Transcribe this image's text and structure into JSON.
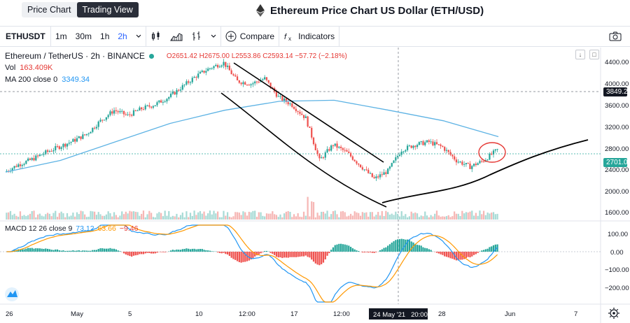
{
  "header": {
    "tabs": [
      {
        "label": "Price Chart",
        "active": false
      },
      {
        "label": "Trading View",
        "active": true
      }
    ],
    "title": "Ethereum Price Chart US Dollar (ETH/USD)",
    "logo_icon": "ethereum-diamond-icon"
  },
  "toolbar": {
    "symbol": "ETHUSDT",
    "intervals": [
      "1m",
      "30m",
      "1h",
      "2h"
    ],
    "active_interval": "2h",
    "compare_label": "Compare",
    "indicators_label": "Indicators",
    "icons": [
      "candles-icon",
      "area-icon",
      "bars-icon",
      "plus-icon",
      "fx-icon",
      "camera-icon"
    ]
  },
  "legend": {
    "pair": "Ethereum / TetherUS · 2h · BINANCE",
    "ohlc": "O2651.42 H2675.00 L2553.86 C2593.14 −57.72 (−2.18%)",
    "vol_label": "Vol",
    "vol_value": "163.409K",
    "ma_label": "MA 200 close 0",
    "ma_value": "3349.34"
  },
  "macd_legend": {
    "label": "MACD 12 26 close 9",
    "v1": "73.12",
    "v2": "63.66",
    "v3": "−9.46"
  },
  "price_axis": {
    "ticks": [
      "4400.00",
      "4000.00",
      "3600.00",
      "3200.00",
      "2800.00",
      "2400.00",
      "2000.00",
      "1600.00"
    ],
    "marker_dark": "3849.21",
    "marker_green": "2701.00",
    "macd_ticks": [
      "100.00",
      "0.00",
      "−100.00",
      "−200.00"
    ]
  },
  "time_axis": {
    "ticks": [
      "26",
      "May",
      "5",
      "10",
      "12:00",
      "17",
      "12:00",
      "28",
      "Jun",
      "7"
    ],
    "crosshair_label": "24 May '21   20:00"
  },
  "colors": {
    "up": "#26a69a",
    "down": "#ef5350",
    "ma": "#5eb3e4",
    "macd": "#2196f3",
    "signal": "#ff9800",
    "annotation": "#000000",
    "circle": "#e53935"
  },
  "chart_data": {
    "type": "candlestick",
    "title": "Ethereum / TetherUS · 2h · BINANCE",
    "ylim": [
      1500,
      4500
    ],
    "price_path": [
      [
        "26",
        2280
      ],
      [
        "27",
        2420
      ],
      [
        "28",
        2520
      ],
      [
        "29",
        2650
      ],
      [
        "30",
        2760
      ],
      [
        "May",
        2870
      ],
      [
        "2",
        3000
      ],
      [
        "3",
        3250
      ],
      [
        "4",
        3450
      ],
      [
        "5",
        3350
      ],
      [
        "6",
        3480
      ],
      [
        "7",
        3560
      ],
      [
        "8",
        3700
      ],
      [
        "9",
        3900
      ],
      [
        "10",
        4100
      ],
      [
        "11",
        4250
      ],
      [
        "12",
        4350
      ],
      [
        "13",
        4000
      ],
      [
        "14",
        3950
      ],
      [
        "15",
        4050
      ],
      [
        "16",
        3700
      ],
      [
        "17",
        3550
      ],
      [
        "18",
        3300
      ],
      [
        "19",
        2500
      ],
      [
        "20",
        2800
      ],
      [
        "21",
        2650
      ],
      [
        "22",
        2400
      ],
      [
        "23",
        2150
      ],
      [
        "24",
        2300
      ],
      [
        "25",
        2700
      ],
      [
        "26b",
        2800
      ],
      [
        "27b",
        2850
      ],
      [
        "28",
        2750
      ],
      [
        "29",
        2500
      ],
      [
        "30b",
        2380
      ],
      [
        "31",
        2500
      ],
      [
        "Jun",
        2701
      ]
    ],
    "ma200_path": [
      [
        "26",
        2280
      ],
      [
        "May",
        2500
      ],
      [
        "5",
        2850
      ],
      [
        "10",
        3200
      ],
      [
        "12:00",
        3450
      ],
      [
        "17",
        3620
      ],
      [
        "19",
        3640
      ],
      [
        "24",
        3450
      ],
      [
        "28",
        3250
      ],
      [
        "Jun",
        2950
      ]
    ],
    "last_price": 2701.0,
    "ma200_value": 3349.34
  }
}
